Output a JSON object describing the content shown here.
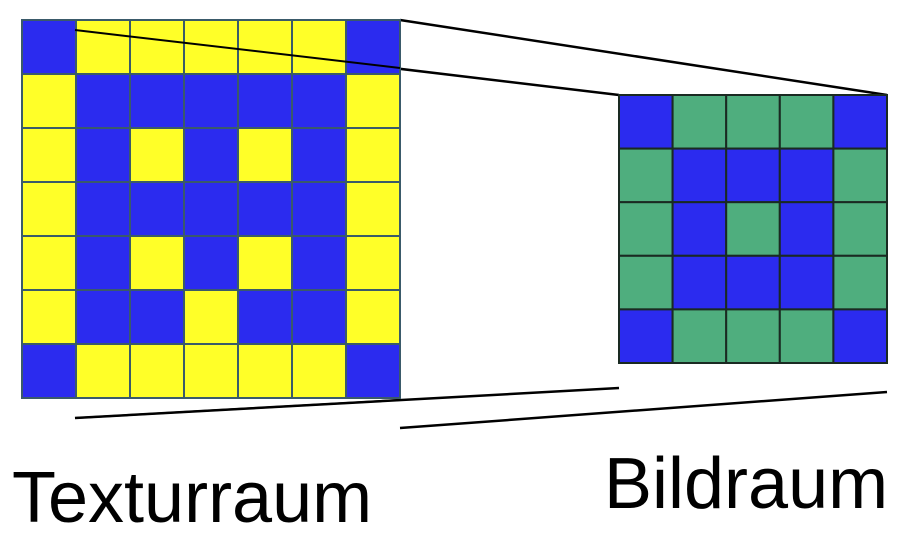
{
  "labels": {
    "texture_space": "Texturraum",
    "image_space": "Bildraum"
  },
  "colors": {
    "blue": "#2b2bef",
    "yellow": "#ffff28",
    "green": "#4fae7e",
    "grid_line_texture": "#3a5a6a",
    "grid_line_image": "#1a2a22",
    "projection_line": "#000000"
  },
  "texture_grid": {
    "rows": 7,
    "cols": 7,
    "pattern": [
      [
        "blue",
        "yellow",
        "yellow",
        "yellow",
        "yellow",
        "yellow",
        "blue"
      ],
      [
        "yellow",
        "blue",
        "blue",
        "blue",
        "blue",
        "blue",
        "yellow"
      ],
      [
        "yellow",
        "blue",
        "yellow",
        "blue",
        "yellow",
        "blue",
        "yellow"
      ],
      [
        "yellow",
        "blue",
        "blue",
        "blue",
        "blue",
        "blue",
        "yellow"
      ],
      [
        "yellow",
        "blue",
        "yellow",
        "blue",
        "yellow",
        "blue",
        "yellow"
      ],
      [
        "yellow",
        "blue",
        "blue",
        "yellow",
        "blue",
        "blue",
        "yellow"
      ],
      [
        "blue",
        "yellow",
        "yellow",
        "yellow",
        "yellow",
        "yellow",
        "blue"
      ]
    ]
  },
  "image_grid": {
    "rows": 5,
    "cols": 5,
    "pattern": [
      [
        "blue",
        "green",
        "green",
        "green",
        "blue"
      ],
      [
        "green",
        "blue",
        "blue",
        "blue",
        "green"
      ],
      [
        "green",
        "blue",
        "green",
        "blue",
        "green"
      ],
      [
        "green",
        "blue",
        "blue",
        "blue",
        "green"
      ],
      [
        "blue",
        "green",
        "green",
        "green",
        "blue"
      ]
    ]
  }
}
